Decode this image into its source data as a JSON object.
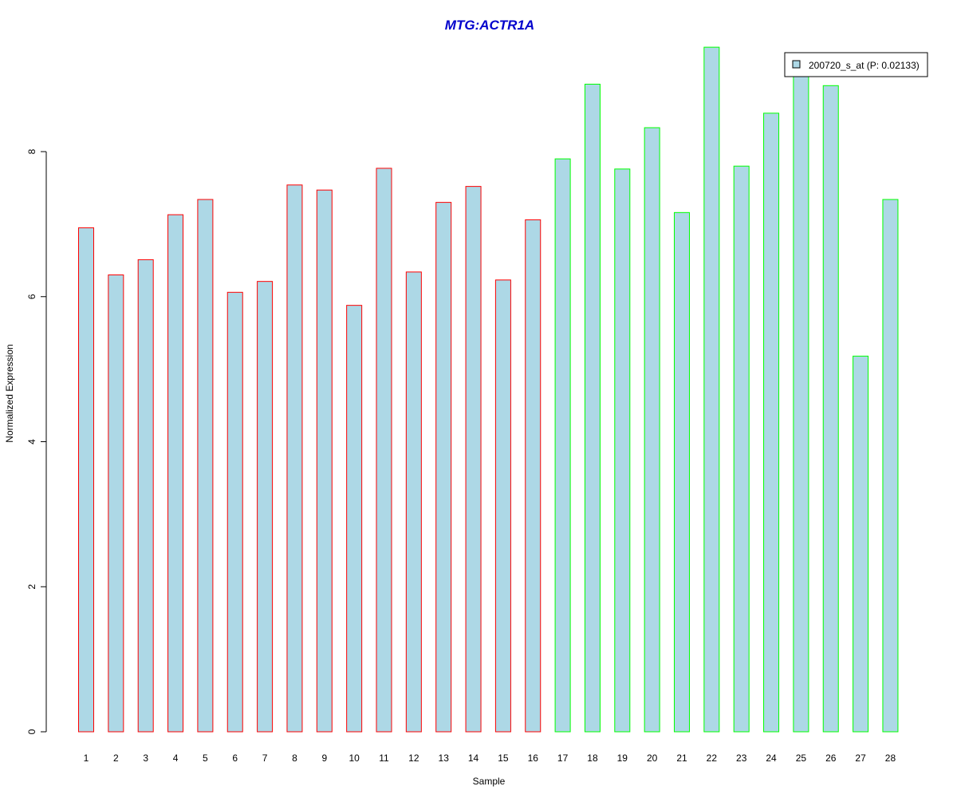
{
  "chart_data": {
    "type": "bar",
    "title": "MTG:ACTR1A",
    "xlabel": "Sample",
    "ylabel": "Normalized Expression",
    "ylim": [
      0,
      9.6
    ],
    "yticks": [
      0,
      2,
      4,
      6,
      8
    ],
    "categories": [
      "1",
      "2",
      "3",
      "4",
      "5",
      "6",
      "7",
      "8",
      "9",
      "10",
      "11",
      "12",
      "13",
      "14",
      "15",
      "16",
      "17",
      "18",
      "19",
      "20",
      "21",
      "22",
      "23",
      "24",
      "25",
      "26",
      "27",
      "28"
    ],
    "series": [
      {
        "name": "200720_s_at (P: 0.02133)",
        "values": [
          6.95,
          6.3,
          6.51,
          7.13,
          7.34,
          6.06,
          6.21,
          7.54,
          7.47,
          5.88,
          7.77,
          6.34,
          7.3,
          7.52,
          6.23,
          7.06,
          7.9,
          8.93,
          7.76,
          8.33,
          7.16,
          9.44,
          7.8,
          8.53,
          9.09,
          8.91,
          5.18,
          7.34
        ],
        "fill": "#add8e6",
        "border_colors": [
          "#ff0000",
          "#ff0000",
          "#ff0000",
          "#ff0000",
          "#ff0000",
          "#ff0000",
          "#ff0000",
          "#ff0000",
          "#ff0000",
          "#ff0000",
          "#ff0000",
          "#ff0000",
          "#ff0000",
          "#ff0000",
          "#ff0000",
          "#ff0000",
          "#00ff00",
          "#00ff00",
          "#00ff00",
          "#00ff00",
          "#00ff00",
          "#00ff00",
          "#00ff00",
          "#00ff00",
          "#00ff00",
          "#00ff00",
          "#00ff00",
          "#00ff00"
        ]
      }
    ],
    "title_color": "#0000cc",
    "grid": false,
    "legend_position": "top-right"
  }
}
